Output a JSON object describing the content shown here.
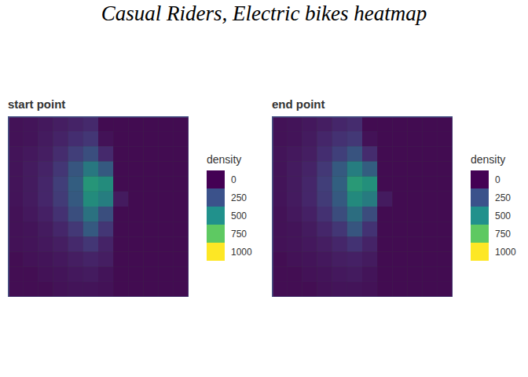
{
  "title": "Casual Riders, Electric bikes heatmap",
  "chart_data": [
    {
      "type": "heatmap",
      "title": "start point",
      "xlim": [
        -87.86,
        -87.5
      ],
      "ylim": [
        41.75,
        42.05
      ],
      "tick_labels": false,
      "x_edges": [
        -87.86,
        -87.83,
        -87.8,
        -87.77,
        -87.74,
        -87.71,
        -87.68,
        -87.65,
        -87.62,
        -87.59,
        -87.56,
        -87.53,
        -87.5
      ],
      "y_edges": [
        42.05,
        42.025,
        42.0,
        41.975,
        41.95,
        41.925,
        41.9,
        41.875,
        41.85,
        41.825,
        41.8,
        41.775,
        41.75
      ],
      "density": [
        [
          20,
          30,
          40,
          60,
          80,
          100,
          0,
          0,
          0,
          0,
          0,
          0
        ],
        [
          20,
          30,
          50,
          80,
          120,
          150,
          20,
          0,
          0,
          0,
          0,
          0
        ],
        [
          30,
          40,
          60,
          110,
          180,
          250,
          100,
          0,
          0,
          0,
          0,
          0
        ],
        [
          30,
          50,
          80,
          150,
          280,
          450,
          300,
          0,
          0,
          0,
          0,
          0
        ],
        [
          30,
          50,
          90,
          180,
          320,
          600,
          550,
          0,
          0,
          0,
          0,
          0
        ],
        [
          30,
          50,
          90,
          170,
          300,
          550,
          480,
          50,
          0,
          0,
          0,
          0
        ],
        [
          20,
          40,
          70,
          130,
          250,
          420,
          250,
          0,
          0,
          0,
          0,
          0
        ],
        [
          20,
          30,
          50,
          90,
          160,
          300,
          150,
          0,
          0,
          0,
          0,
          0
        ],
        [
          20,
          30,
          40,
          60,
          100,
          150,
          80,
          0,
          0,
          0,
          0,
          0
        ],
        [
          10,
          20,
          30,
          40,
          60,
          80,
          60,
          0,
          0,
          0,
          0,
          0
        ],
        [
          10,
          10,
          20,
          30,
          40,
          50,
          30,
          0,
          0,
          0,
          0,
          0
        ],
        [
          10,
          10,
          10,
          20,
          30,
          30,
          20,
          0,
          0,
          0,
          0,
          0
        ]
      ],
      "colorbar": {
        "label": "density",
        "range": [
          0,
          1000
        ],
        "ticks": [
          0,
          250,
          500,
          750,
          1000
        ]
      }
    },
    {
      "type": "heatmap",
      "title": "end point",
      "xlim": [
        -87.86,
        -87.5
      ],
      "ylim": [
        41.75,
        42.05
      ],
      "tick_labels": false,
      "x_edges": [
        -87.86,
        -87.83,
        -87.8,
        -87.77,
        -87.74,
        -87.71,
        -87.68,
        -87.65,
        -87.62,
        -87.59,
        -87.56,
        -87.53,
        -87.5
      ],
      "y_edges": [
        42.05,
        42.025,
        42.0,
        41.975,
        41.95,
        41.925,
        41.9,
        41.875,
        41.85,
        41.825,
        41.8,
        41.775,
        41.75
      ],
      "density": [
        [
          20,
          30,
          40,
          60,
          90,
          110,
          0,
          0,
          0,
          0,
          0,
          0
        ],
        [
          20,
          30,
          50,
          90,
          130,
          160,
          20,
          0,
          0,
          0,
          0,
          0
        ],
        [
          30,
          40,
          60,
          120,
          190,
          270,
          110,
          0,
          0,
          0,
          0,
          0
        ],
        [
          30,
          50,
          80,
          160,
          300,
          480,
          320,
          0,
          0,
          0,
          0,
          0
        ],
        [
          30,
          50,
          90,
          180,
          330,
          620,
          570,
          0,
          0,
          0,
          0,
          0
        ],
        [
          30,
          50,
          90,
          170,
          300,
          540,
          470,
          50,
          0,
          0,
          0,
          0
        ],
        [
          20,
          40,
          70,
          130,
          240,
          400,
          240,
          0,
          0,
          0,
          0,
          0
        ],
        [
          20,
          30,
          50,
          90,
          150,
          280,
          140,
          0,
          0,
          0,
          0,
          0
        ],
        [
          20,
          30,
          40,
          60,
          90,
          140,
          80,
          0,
          0,
          0,
          0,
          0
        ],
        [
          10,
          20,
          30,
          40,
          60,
          70,
          50,
          0,
          0,
          0,
          0,
          0
        ],
        [
          10,
          10,
          20,
          30,
          40,
          50,
          30,
          0,
          0,
          0,
          0,
          0
        ],
        [
          10,
          10,
          10,
          20,
          30,
          30,
          20,
          0,
          0,
          0,
          0,
          0
        ]
      ],
      "colorbar": {
        "label": "density",
        "range": [
          0,
          1000
        ],
        "ticks": [
          0,
          250,
          500,
          750,
          1000
        ]
      }
    }
  ]
}
